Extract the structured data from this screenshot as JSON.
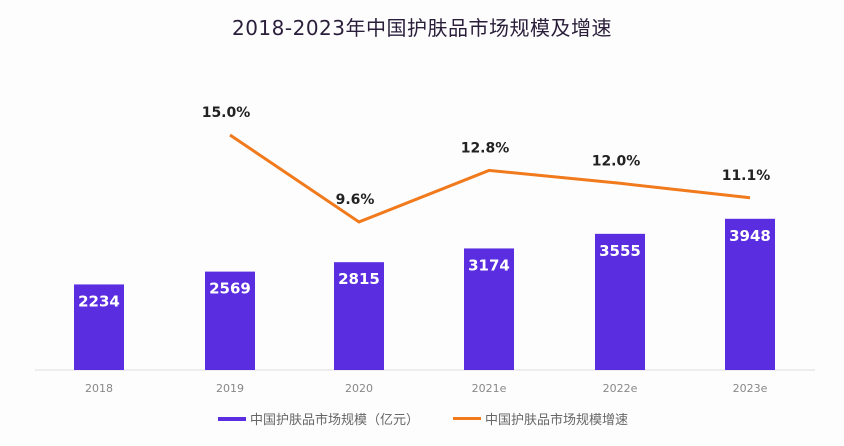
{
  "chart_data": {
    "type": "bar+line",
    "title": "2018-2023年中国护肤品市场规模及增速",
    "categories": [
      "2018",
      "2019",
      "2020",
      "2021e",
      "2022e",
      "2023e"
    ],
    "series": [
      {
        "name": "中国护肤品市场规模（亿元）",
        "type": "bar",
        "values": [
          2234,
          2569,
          2815,
          3174,
          3555,
          3948
        ],
        "color": "#5a2ee0"
      },
      {
        "name": "中国护肤品市场规模增速",
        "type": "line",
        "values": [
          null,
          15.0,
          9.6,
          12.8,
          12.0,
          11.1
        ],
        "labels": [
          null,
          "15.0%",
          "9.6%",
          "12.8%",
          "12.0%",
          "11.1%"
        ],
        "color": "#f07a1c"
      }
    ],
    "grid": false,
    "legend": "bottom"
  }
}
